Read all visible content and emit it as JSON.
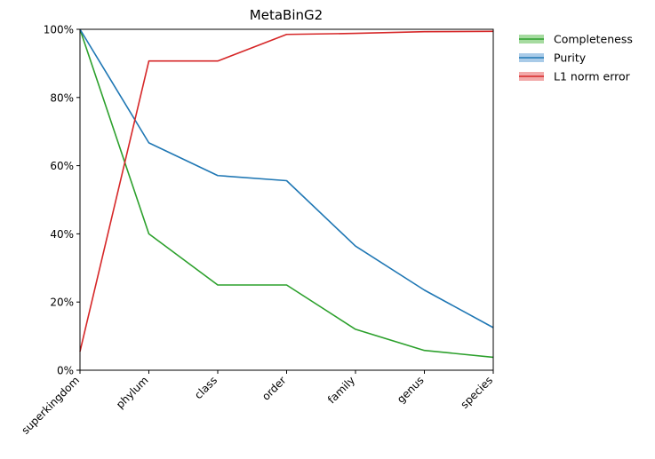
{
  "chart_data": {
    "type": "line",
    "title": "MetaBinG2",
    "xlabel": "",
    "ylabel": "",
    "categories": [
      "superkingdom",
      "phylum",
      "class",
      "order",
      "family",
      "genus",
      "species"
    ],
    "ylim": [
      0,
      1
    ],
    "yticks": [
      0,
      0.2,
      0.4,
      0.6,
      0.8,
      1.0
    ],
    "ytick_labels": [
      "0%",
      "20%",
      "40%",
      "60%",
      "80%",
      "100%"
    ],
    "grid": false,
    "legend_position": "outside-top-right",
    "series": [
      {
        "name": "Completeness",
        "color": "#2ca02c",
        "band_color": "#a6dba0",
        "values": [
          1.0,
          0.4,
          0.25,
          0.25,
          0.12,
          0.058,
          0.038
        ]
      },
      {
        "name": "Purity",
        "color": "#1f77b4",
        "band_color": "#a9cbe8",
        "values": [
          1.0,
          0.667,
          0.571,
          0.556,
          0.364,
          0.235,
          0.125
        ]
      },
      {
        "name": "L1 norm error",
        "color": "#d62728",
        "band_color": "#f2a9a9",
        "values": [
          0.055,
          0.907,
          0.907,
          0.985,
          0.988,
          0.993,
          0.994
        ]
      }
    ]
  }
}
